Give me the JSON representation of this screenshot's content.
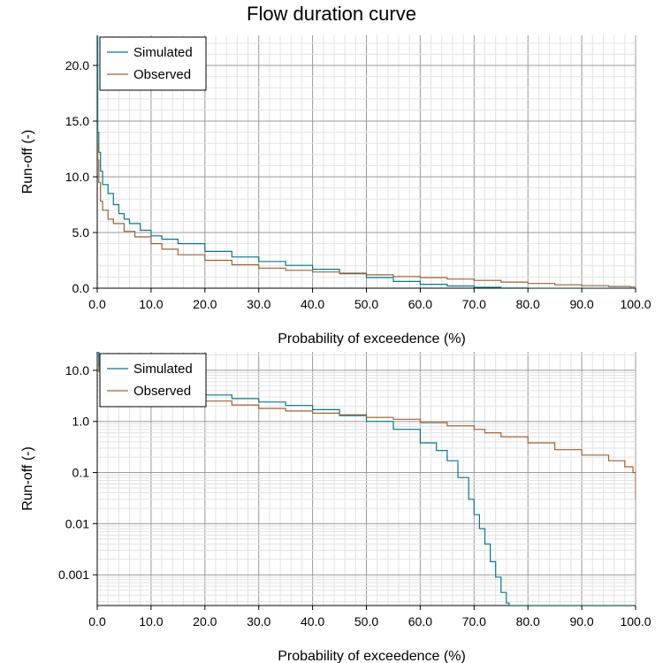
{
  "title": "Flow duration curve",
  "chart_data": [
    {
      "type": "line",
      "title": "Flow duration curve",
      "xlabel": "Probability of exceedence (%)",
      "ylabel": "Run-off (-)",
      "xlim": [
        0,
        100
      ],
      "ylim": [
        0,
        23
      ],
      "yscale": "linear",
      "x_ticks": [
        "0.0",
        "10.0",
        "20.0",
        "30.0",
        "40.0",
        "50.0",
        "60.0",
        "70.0",
        "80.0",
        "90.0",
        "100.0"
      ],
      "y_ticks": [
        "0.0",
        "5.0",
        "10.0",
        "15.0",
        "20.0"
      ],
      "x_tick_values": [
        0,
        10,
        20,
        30,
        40,
        50,
        60,
        70,
        80,
        90,
        100
      ],
      "y_tick_values": [
        0,
        5,
        10,
        15,
        20
      ],
      "grid": true,
      "legend": "top-left",
      "series": [
        {
          "name": "Simulated",
          "color": "#007b8a",
          "x": [
            0,
            0.1,
            0.3,
            0.6,
            1,
            2,
            3,
            4,
            5,
            6,
            8,
            10,
            12,
            15,
            20,
            25,
            30,
            35,
            40,
            45,
            50,
            55,
            60,
            65,
            70,
            75,
            80,
            90,
            100
          ],
          "y": [
            23,
            14,
            12.2,
            10.5,
            9.3,
            8.5,
            7.5,
            6.7,
            6.2,
            5.8,
            5.2,
            4.7,
            4.4,
            4.0,
            3.3,
            2.8,
            2.4,
            2.05,
            1.7,
            1.3,
            0.95,
            0.6,
            0.35,
            0.2,
            0.08,
            0.02,
            0.0,
            0.0,
            0.0
          ]
        },
        {
          "name": "Observed",
          "color": "#a0622d",
          "x": [
            0,
            0.1,
            0.3,
            0.6,
            1,
            2,
            3,
            5,
            7,
            10,
            12,
            15,
            20,
            25,
            30,
            35,
            40,
            45,
            50,
            55,
            60,
            65,
            70,
            75,
            80,
            85,
            90,
            95,
            99,
            100
          ],
          "y": [
            13,
            11.5,
            9.5,
            7.8,
            7.0,
            6.2,
            5.8,
            5.1,
            4.6,
            4.0,
            3.5,
            3.0,
            2.5,
            2.1,
            1.8,
            1.6,
            1.45,
            1.35,
            1.2,
            1.05,
            0.95,
            0.82,
            0.7,
            0.55,
            0.42,
            0.3,
            0.22,
            0.15,
            0.1,
            0.03
          ]
        }
      ]
    },
    {
      "type": "line",
      "title": "",
      "xlabel": "Probability of exceedence (%)",
      "ylabel": "Run-off (-)",
      "xlim": [
        0,
        100
      ],
      "ylim": [
        0.00025,
        23
      ],
      "yscale": "log",
      "x_ticks": [
        "0.0",
        "10.0",
        "20.0",
        "30.0",
        "40.0",
        "50.0",
        "60.0",
        "70.0",
        "80.0",
        "90.0",
        "100.0"
      ],
      "y_ticks": [
        "10.0",
        "1.0",
        "0.1",
        "0.01",
        "0.001"
      ],
      "x_tick_values": [
        0,
        10,
        20,
        30,
        40,
        50,
        60,
        70,
        80,
        90,
        100
      ],
      "y_tick_values": [
        10,
        1,
        0.1,
        0.01,
        0.001
      ],
      "grid": true,
      "legend": "top-left",
      "series": [
        {
          "name": "Simulated",
          "color": "#007b8a",
          "x": [
            0,
            0.3,
            1,
            3,
            5,
            10,
            15,
            20,
            25,
            30,
            35,
            40,
            45,
            50,
            55,
            60,
            63,
            65,
            67,
            69,
            70,
            71,
            72,
            73,
            74,
            75,
            76,
            76.5,
            80,
            90,
            100
          ],
          "y": [
            23,
            12.2,
            9.3,
            7.5,
            6.2,
            4.7,
            4.0,
            3.3,
            2.8,
            2.4,
            2.05,
            1.7,
            1.3,
            1.0,
            0.7,
            0.38,
            0.27,
            0.17,
            0.08,
            0.03,
            0.015,
            0.008,
            0.004,
            0.0018,
            0.0009,
            0.00045,
            0.00028,
            0.00025,
            0.00025,
            0.00025,
            0.00025
          ]
        },
        {
          "name": "Observed",
          "color": "#a0622d",
          "x": [
            0,
            0.3,
            1,
            3,
            5,
            10,
            15,
            20,
            25,
            30,
            35,
            40,
            45,
            50,
            55,
            60,
            65,
            70,
            72,
            75,
            80,
            85,
            90,
            95,
            98,
            99.5,
            100
          ],
          "y": [
            13,
            9.5,
            7.0,
            5.8,
            5.1,
            4.0,
            3.0,
            2.5,
            2.1,
            1.8,
            1.6,
            1.45,
            1.35,
            1.2,
            1.1,
            0.95,
            0.82,
            0.7,
            0.6,
            0.5,
            0.38,
            0.28,
            0.22,
            0.17,
            0.13,
            0.1,
            0.03
          ]
        }
      ]
    }
  ]
}
